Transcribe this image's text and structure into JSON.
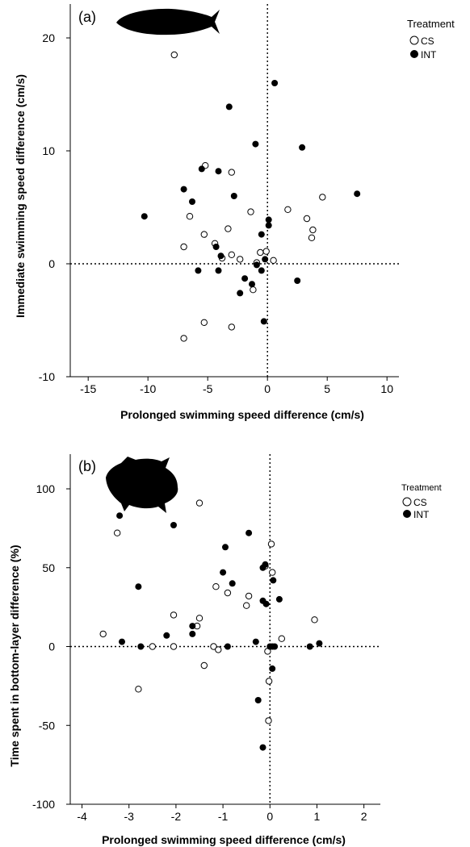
{
  "chart_data": [
    {
      "type": "scatter",
      "panel_label": "(a)",
      "title": "",
      "xlabel": "Prolonged swimming speed difference (cm/s)",
      "ylabel": "Immediate swimming speed difference (cm/s)",
      "xlim": [
        -16.5,
        11
      ],
      "ylim": [
        -10,
        23
      ],
      "xticks": [
        -15,
        -10,
        -5,
        0,
        5,
        10
      ],
      "yticks": [
        -10,
        0,
        10,
        20
      ],
      "reference_lines": {
        "x": 0,
        "y": 0,
        "style": "dotted"
      },
      "grid": false,
      "legend": {
        "title": "Treatment",
        "placement": "top-right",
        "entries": [
          "CS",
          "INT"
        ]
      },
      "series": [
        {
          "name": "CS",
          "marker": "open-circle",
          "points": [
            [
              -7.8,
              18.5
            ],
            [
              -5.2,
              8.7
            ],
            [
              -3.0,
              8.1
            ],
            [
              -6.5,
              4.2
            ],
            [
              -1.4,
              4.6
            ],
            [
              -3.3,
              3.1
            ],
            [
              -5.3,
              2.6
            ],
            [
              -7.0,
              1.5
            ],
            [
              -4.4,
              1.8
            ],
            [
              -3.0,
              0.8
            ],
            [
              -2.3,
              0.4
            ],
            [
              -3.8,
              0.5
            ],
            [
              -0.9,
              0.1
            ],
            [
              -0.6,
              1.0
            ],
            [
              -0.1,
              1.1
            ],
            [
              0.5,
              0.3
            ],
            [
              -1.2,
              -2.3
            ],
            [
              -5.3,
              -5.2
            ],
            [
              -3.0,
              -5.6
            ],
            [
              -7.0,
              -6.6
            ],
            [
              1.7,
              4.8
            ],
            [
              3.3,
              4.0
            ],
            [
              3.8,
              3.0
            ],
            [
              3.7,
              2.3
            ],
            [
              4.6,
              5.9
            ]
          ]
        },
        {
          "name": "INT",
          "marker": "filled-circle",
          "points": [
            [
              0.6,
              16.0
            ],
            [
              -3.2,
              13.9
            ],
            [
              -1.0,
              10.6
            ],
            [
              2.9,
              10.3
            ],
            [
              7.5,
              6.2
            ],
            [
              -10.3,
              4.2
            ],
            [
              -7.0,
              6.6
            ],
            [
              -5.5,
              8.4
            ],
            [
              -4.1,
              8.2
            ],
            [
              -2.8,
              6.0
            ],
            [
              -6.3,
              5.5
            ],
            [
              0.1,
              3.9
            ],
            [
              0.1,
              3.4
            ],
            [
              -0.5,
              2.6
            ],
            [
              -4.3,
              1.5
            ],
            [
              -3.9,
              0.7
            ],
            [
              -0.2,
              0.4
            ],
            [
              -0.9,
              -0.1
            ],
            [
              -5.8,
              -0.6
            ],
            [
              -4.1,
              -0.6
            ],
            [
              -1.9,
              -1.3
            ],
            [
              -0.5,
              -0.6
            ],
            [
              -1.3,
              -1.8
            ],
            [
              -2.3,
              -2.6
            ],
            [
              2.5,
              -1.5
            ],
            [
              -0.3,
              -5.1
            ]
          ]
        }
      ]
    },
    {
      "type": "scatter",
      "panel_label": "(b)",
      "title": "",
      "xlabel": "Prolonged swimming speed difference (cm/s)",
      "ylabel": "Time spent in bottom-layer difference (%)",
      "xlim": [
        -4.25,
        2.35
      ],
      "ylim": [
        -100,
        122
      ],
      "xticks": [
        -4,
        -3,
        -2,
        -1,
        0,
        1,
        2
      ],
      "yticks": [
        -100,
        -50,
        0,
        50,
        100
      ],
      "reference_lines": {
        "x": 0,
        "y": 0,
        "style": "dotted"
      },
      "grid": false,
      "legend": {
        "title": "Treatment",
        "placement": "top-right",
        "entries": [
          "CS",
          "INT"
        ]
      },
      "series": [
        {
          "name": "CS",
          "marker": "open-circle",
          "points": [
            [
              -1.5,
              91
            ],
            [
              -3.25,
              72
            ],
            [
              0.03,
              65
            ],
            [
              -0.1,
              51
            ],
            [
              0.05,
              47
            ],
            [
              -1.15,
              38
            ],
            [
              -0.9,
              34
            ],
            [
              -0.45,
              32
            ],
            [
              -0.5,
              26
            ],
            [
              -2.05,
              20
            ],
            [
              -1.5,
              18
            ],
            [
              -1.55,
              13
            ],
            [
              -3.55,
              8
            ],
            [
              0.25,
              5
            ],
            [
              0.95,
              17
            ],
            [
              -2.5,
              0
            ],
            [
              -2.05,
              0
            ],
            [
              -1.2,
              0
            ],
            [
              -1.1,
              -2
            ],
            [
              -0.05,
              -3
            ],
            [
              -1.4,
              -12
            ],
            [
              -2.8,
              -27
            ],
            [
              -0.02,
              -22
            ],
            [
              -0.03,
              -47
            ]
          ]
        },
        {
          "name": "INT",
          "marker": "filled-circle",
          "points": [
            [
              -3.2,
              83
            ],
            [
              -2.05,
              77
            ],
            [
              -0.45,
              72
            ],
            [
              -0.95,
              63
            ],
            [
              -0.1,
              52
            ],
            [
              -0.15,
              50
            ],
            [
              -1.0,
              47
            ],
            [
              0.07,
              42
            ],
            [
              -0.8,
              40
            ],
            [
              -2.8,
              38
            ],
            [
              0.2,
              30
            ],
            [
              -0.15,
              29
            ],
            [
              -0.08,
              27
            ],
            [
              -1.65,
              13
            ],
            [
              -1.65,
              8
            ],
            [
              -2.2,
              7
            ],
            [
              -3.15,
              3
            ],
            [
              -0.3,
              3
            ],
            [
              -2.75,
              0
            ],
            [
              -0.9,
              0
            ],
            [
              0.0,
              0
            ],
            [
              0.05,
              0
            ],
            [
              0.1,
              0
            ],
            [
              0.85,
              0
            ],
            [
              1.05,
              2
            ],
            [
              0.05,
              -14
            ],
            [
              -0.25,
              -34
            ],
            [
              -0.15,
              -64
            ]
          ]
        }
      ]
    }
  ]
}
